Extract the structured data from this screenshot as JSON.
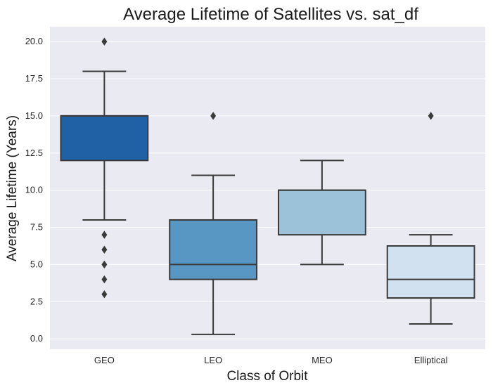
{
  "chart_data": {
    "type": "box",
    "title": "Average Lifetime of Satellites vs. sat_df",
    "xlabel": "Class of Orbit",
    "ylabel": "Average Lifetime (Years)",
    "ylim": [
      -0.7,
      21.0
    ],
    "yticks": [
      0.0,
      2.5,
      5.0,
      7.5,
      10.0,
      12.5,
      15.0,
      17.5,
      20.0
    ],
    "ytick_labels": [
      "0.0",
      "2.5",
      "5.0",
      "7.5",
      "10.0",
      "12.5",
      "15.0",
      "17.5",
      "20.0"
    ],
    "grid": true,
    "categories": [
      "GEO",
      "LEO",
      "MEO",
      "Elliptical"
    ],
    "boxes": [
      {
        "category": "GEO",
        "whisker_low": 8.0,
        "q1": 12.0,
        "median": 15.0,
        "q3": 15.0,
        "whisker_high": 18.0,
        "outliers": [
          20.0,
          7.0,
          6.0,
          5.0,
          4.0,
          3.0
        ],
        "color": "#2060a4"
      },
      {
        "category": "LEO",
        "whisker_low": 0.3,
        "q1": 4.0,
        "median": 5.0,
        "q3": 8.0,
        "whisker_high": 11.0,
        "outliers": [
          15.0
        ],
        "color": "#5896c3"
      },
      {
        "category": "MEO",
        "whisker_low": 5.0,
        "q1": 7.0,
        "median": 10.0,
        "q3": 10.0,
        "whisker_high": 12.0,
        "outliers": [],
        "color": "#9cc2d9"
      },
      {
        "category": "Elliptical",
        "whisker_low": 1.0,
        "q1": 2.75,
        "median": 4.0,
        "q3": 6.25,
        "whisker_high": 7.0,
        "outliers": [
          15.0
        ],
        "color": "#d2e1f0"
      }
    ],
    "background_color": "#eaeaf2",
    "line_color": "#3a3a3a"
  }
}
